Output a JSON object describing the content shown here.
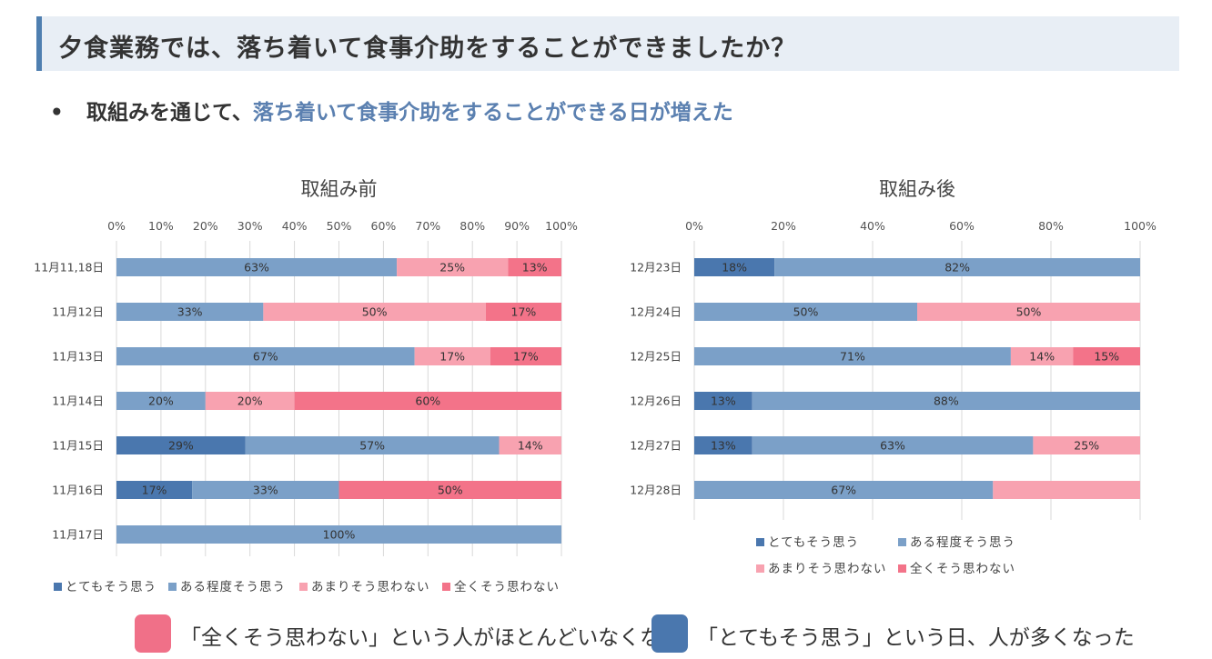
{
  "header": {
    "title": "夕食業務では、落ち着いて食事介助をすることができましたか？"
  },
  "subtitle": {
    "bullet": "•",
    "prefix": "取組みを通じて、",
    "highlight": "落ち着いて食事介助をすることができる日が増えた"
  },
  "footer": {
    "text1": "「全くそう思わない」という人がほとんどいなくなり、",
    "text2": "「とてもそう思う」という日、人が多くなった",
    "swatch1_color": "#f07088",
    "swatch2_color": "#4a77ae"
  },
  "chart_data": [
    {
      "type": "bar",
      "orientation": "horizontal-stacked-100",
      "title": "取組み前",
      "xlim": [
        0,
        100
      ],
      "xticks": [
        "0%",
        "10%",
        "20%",
        "30%",
        "40%",
        "50%",
        "60%",
        "70%",
        "80%",
        "90%",
        "100%"
      ],
      "categories": [
        "11月11,18日",
        "11月12日",
        "11月13日",
        "11月14日",
        "11月15日",
        "11月16日",
        "11月17日"
      ],
      "series": [
        {
          "name": "とてもそう思う",
          "color": "#4a77ae",
          "values": [
            0,
            0,
            0,
            0,
            29,
            17,
            0
          ],
          "labels": [
            "",
            "",
            "",
            "",
            "29%",
            "17%",
            ""
          ]
        },
        {
          "name": "ある程度そう思う",
          "color": "#7ba0c8",
          "values": [
            63,
            33,
            67,
            20,
            57,
            33,
            100
          ],
          "labels": [
            "63%",
            "33%",
            "67%",
            "20%",
            "57%",
            "33%",
            "100%"
          ]
        },
        {
          "name": "あまりそう思わない",
          "color": "#f8a2b0",
          "values": [
            25,
            50,
            17,
            20,
            14,
            0,
            0
          ],
          "labels": [
            "25%",
            "50%",
            "17%",
            "20%",
            "14%",
            "",
            ""
          ]
        },
        {
          "name": "全くそう思わない",
          "color": "#f37389",
          "values": [
            13,
            17,
            17,
            60,
            0,
            50,
            0
          ],
          "labels": [
            "13%",
            "17%",
            "17%",
            "60%",
            "",
            "50%",
            ""
          ]
        }
      ],
      "legend": "bottom"
    },
    {
      "type": "bar",
      "orientation": "horizontal-stacked-100",
      "title": "取組み後",
      "xlim": [
        0,
        100
      ],
      "xticks": [
        "0%",
        "20%",
        "40%",
        "60%",
        "80%",
        "100%"
      ],
      "categories": [
        "12月23日",
        "12月24日",
        "12月25日",
        "12月26日",
        "12月27日",
        "12月28日"
      ],
      "series": [
        {
          "name": "とてもそう思う",
          "color": "#4a77ae",
          "values": [
            18,
            0,
            0,
            13,
            13,
            0
          ],
          "labels": [
            "18%",
            "",
            "",
            "13%",
            "13%",
            ""
          ]
        },
        {
          "name": "ある程度そう思う",
          "color": "#7ba0c8",
          "values": [
            82,
            50,
            71,
            88,
            63,
            67
          ],
          "labels": [
            "82%",
            "50%",
            "71%",
            "88%",
            "63%",
            "67%"
          ]
        },
        {
          "name": "あまりそう思わない",
          "color": "#f8a2b0",
          "values": [
            0,
            50,
            14,
            0,
            25,
            33
          ],
          "labels": [
            "",
            "50%",
            "14%",
            "",
            "25%",
            ""
          ]
        },
        {
          "name": "全くそう思わない",
          "color": "#f37389",
          "values": [
            0,
            0,
            15,
            0,
            0,
            0
          ],
          "labels": [
            "",
            "",
            "15%",
            "",
            "",
            ""
          ]
        }
      ],
      "legend": "bottom"
    }
  ]
}
